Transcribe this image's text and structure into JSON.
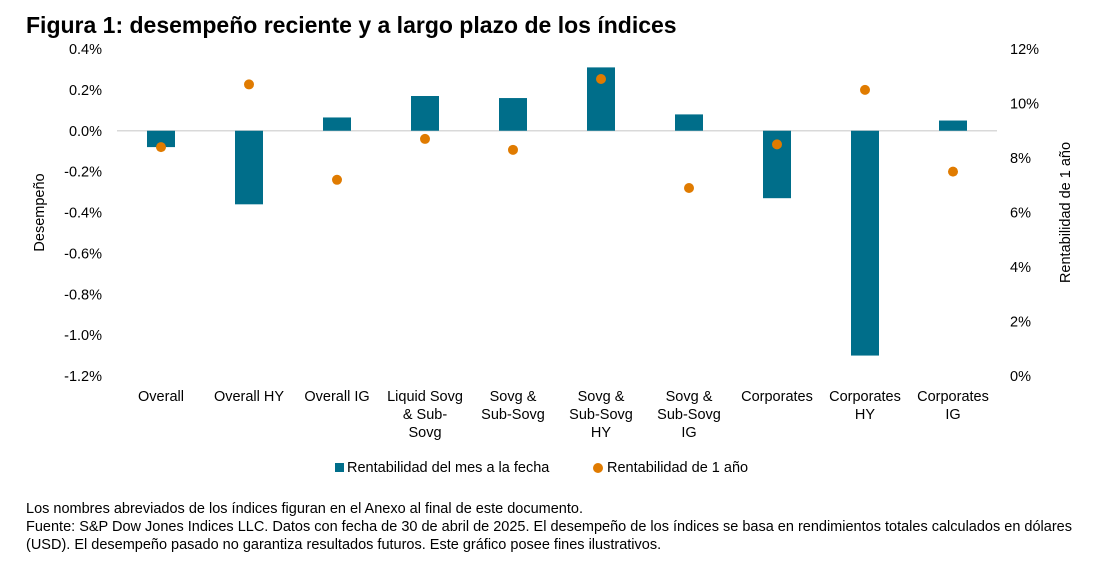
{
  "chart_data": {
    "type": "bar",
    "title": "Figura 1: desempeño reciente y a largo plazo de los índices",
    "categories": [
      [
        "Overall"
      ],
      [
        "Overall HY"
      ],
      [
        "Overall IG"
      ],
      [
        "Liquid Sovg",
        "& Sub-",
        "Sovg"
      ],
      [
        "Sovg &",
        "Sub-Sovg"
      ],
      [
        "Sovg &",
        "Sub-Sovg",
        "HY"
      ],
      [
        "Sovg &",
        "Sub-Sovg",
        "IG"
      ],
      [
        "Corporates"
      ],
      [
        "Corporates",
        "HY"
      ],
      [
        "Corporates",
        "IG"
      ]
    ],
    "series": [
      {
        "name": "Rentabilidad del mes a la fecha",
        "type": "bar",
        "axis": "left",
        "color": "#006e8a",
        "values": [
          -0.08,
          -0.36,
          0.065,
          0.17,
          0.16,
          0.31,
          0.08,
          -0.33,
          -1.1,
          0.05
        ]
      },
      {
        "name": "Rentabilidad de 1 año",
        "type": "scatter",
        "axis": "right",
        "color": "#e07b00",
        "values": [
          8.4,
          10.7,
          7.2,
          8.7,
          8.3,
          10.9,
          6.9,
          8.5,
          10.5,
          7.5
        ]
      }
    ],
    "ylabel": "Desempeño",
    "ylim": [
      -1.2,
      0.4
    ],
    "yticks": [
      "0.4%",
      "0.2%",
      "0.0%",
      "-0.2%",
      "-0.4%",
      "-0.6%",
      "-0.8%",
      "-1.0%",
      "-1.2%"
    ],
    "y2label": "Rentabilidad de 1 año",
    "y2lim": [
      0,
      12
    ],
    "y2ticks": [
      "12%",
      "10%",
      "8%",
      "6%",
      "4%",
      "2%",
      "0%"
    ],
    "legend_position": "bottom",
    "grid": false
  },
  "notes": [
    "Los nombres abreviados de los índices figuran en el Anexo al final de este documento.",
    "Fuente: S&P Dow Jones Indices LLC. Datos con fecha de 30 de abril de 2025. El desempeño de los índices se basa en rendimientos totales calculados en dólares (USD). El desempeño pasado no garantiza resultados futuros. Este gráfico posee fines ilustrativos."
  ]
}
